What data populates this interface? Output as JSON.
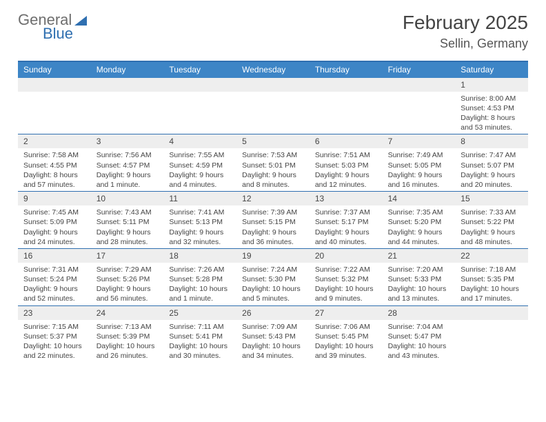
{
  "brand": {
    "word1": "General",
    "word2": "Blue"
  },
  "title": {
    "month": "February 2025",
    "location": "Sellin, Germany"
  },
  "colors": {
    "header_bar": "#3d85c6",
    "rule": "#2f6fb0",
    "daynum_bg": "#eeeeee",
    "text": "#3a3a3a"
  },
  "day_labels": [
    "Sunday",
    "Monday",
    "Tuesday",
    "Wednesday",
    "Thursday",
    "Friday",
    "Saturday"
  ],
  "weeks": [
    [
      {
        "n": "",
        "sr": "",
        "ss": "",
        "dl": ""
      },
      {
        "n": "",
        "sr": "",
        "ss": "",
        "dl": ""
      },
      {
        "n": "",
        "sr": "",
        "ss": "",
        "dl": ""
      },
      {
        "n": "",
        "sr": "",
        "ss": "",
        "dl": ""
      },
      {
        "n": "",
        "sr": "",
        "ss": "",
        "dl": ""
      },
      {
        "n": "",
        "sr": "",
        "ss": "",
        "dl": ""
      },
      {
        "n": "1",
        "sr": "Sunrise: 8:00 AM",
        "ss": "Sunset: 4:53 PM",
        "dl": "Daylight: 8 hours and 53 minutes."
      }
    ],
    [
      {
        "n": "2",
        "sr": "Sunrise: 7:58 AM",
        "ss": "Sunset: 4:55 PM",
        "dl": "Daylight: 8 hours and 57 minutes."
      },
      {
        "n": "3",
        "sr": "Sunrise: 7:56 AM",
        "ss": "Sunset: 4:57 PM",
        "dl": "Daylight: 9 hours and 1 minute."
      },
      {
        "n": "4",
        "sr": "Sunrise: 7:55 AM",
        "ss": "Sunset: 4:59 PM",
        "dl": "Daylight: 9 hours and 4 minutes."
      },
      {
        "n": "5",
        "sr": "Sunrise: 7:53 AM",
        "ss": "Sunset: 5:01 PM",
        "dl": "Daylight: 9 hours and 8 minutes."
      },
      {
        "n": "6",
        "sr": "Sunrise: 7:51 AM",
        "ss": "Sunset: 5:03 PM",
        "dl": "Daylight: 9 hours and 12 minutes."
      },
      {
        "n": "7",
        "sr": "Sunrise: 7:49 AM",
        "ss": "Sunset: 5:05 PM",
        "dl": "Daylight: 9 hours and 16 minutes."
      },
      {
        "n": "8",
        "sr": "Sunrise: 7:47 AM",
        "ss": "Sunset: 5:07 PM",
        "dl": "Daylight: 9 hours and 20 minutes."
      }
    ],
    [
      {
        "n": "9",
        "sr": "Sunrise: 7:45 AM",
        "ss": "Sunset: 5:09 PM",
        "dl": "Daylight: 9 hours and 24 minutes."
      },
      {
        "n": "10",
        "sr": "Sunrise: 7:43 AM",
        "ss": "Sunset: 5:11 PM",
        "dl": "Daylight: 9 hours and 28 minutes."
      },
      {
        "n": "11",
        "sr": "Sunrise: 7:41 AM",
        "ss": "Sunset: 5:13 PM",
        "dl": "Daylight: 9 hours and 32 minutes."
      },
      {
        "n": "12",
        "sr": "Sunrise: 7:39 AM",
        "ss": "Sunset: 5:15 PM",
        "dl": "Daylight: 9 hours and 36 minutes."
      },
      {
        "n": "13",
        "sr": "Sunrise: 7:37 AM",
        "ss": "Sunset: 5:17 PM",
        "dl": "Daylight: 9 hours and 40 minutes."
      },
      {
        "n": "14",
        "sr": "Sunrise: 7:35 AM",
        "ss": "Sunset: 5:20 PM",
        "dl": "Daylight: 9 hours and 44 minutes."
      },
      {
        "n": "15",
        "sr": "Sunrise: 7:33 AM",
        "ss": "Sunset: 5:22 PM",
        "dl": "Daylight: 9 hours and 48 minutes."
      }
    ],
    [
      {
        "n": "16",
        "sr": "Sunrise: 7:31 AM",
        "ss": "Sunset: 5:24 PM",
        "dl": "Daylight: 9 hours and 52 minutes."
      },
      {
        "n": "17",
        "sr": "Sunrise: 7:29 AM",
        "ss": "Sunset: 5:26 PM",
        "dl": "Daylight: 9 hours and 56 minutes."
      },
      {
        "n": "18",
        "sr": "Sunrise: 7:26 AM",
        "ss": "Sunset: 5:28 PM",
        "dl": "Daylight: 10 hours and 1 minute."
      },
      {
        "n": "19",
        "sr": "Sunrise: 7:24 AM",
        "ss": "Sunset: 5:30 PM",
        "dl": "Daylight: 10 hours and 5 minutes."
      },
      {
        "n": "20",
        "sr": "Sunrise: 7:22 AM",
        "ss": "Sunset: 5:32 PM",
        "dl": "Daylight: 10 hours and 9 minutes."
      },
      {
        "n": "21",
        "sr": "Sunrise: 7:20 AM",
        "ss": "Sunset: 5:33 PM",
        "dl": "Daylight: 10 hours and 13 minutes."
      },
      {
        "n": "22",
        "sr": "Sunrise: 7:18 AM",
        "ss": "Sunset: 5:35 PM",
        "dl": "Daylight: 10 hours and 17 minutes."
      }
    ],
    [
      {
        "n": "23",
        "sr": "Sunrise: 7:15 AM",
        "ss": "Sunset: 5:37 PM",
        "dl": "Daylight: 10 hours and 22 minutes."
      },
      {
        "n": "24",
        "sr": "Sunrise: 7:13 AM",
        "ss": "Sunset: 5:39 PM",
        "dl": "Daylight: 10 hours and 26 minutes."
      },
      {
        "n": "25",
        "sr": "Sunrise: 7:11 AM",
        "ss": "Sunset: 5:41 PM",
        "dl": "Daylight: 10 hours and 30 minutes."
      },
      {
        "n": "26",
        "sr": "Sunrise: 7:09 AM",
        "ss": "Sunset: 5:43 PM",
        "dl": "Daylight: 10 hours and 34 minutes."
      },
      {
        "n": "27",
        "sr": "Sunrise: 7:06 AM",
        "ss": "Sunset: 5:45 PM",
        "dl": "Daylight: 10 hours and 39 minutes."
      },
      {
        "n": "28",
        "sr": "Sunrise: 7:04 AM",
        "ss": "Sunset: 5:47 PM",
        "dl": "Daylight: 10 hours and 43 minutes."
      },
      {
        "n": "",
        "sr": "",
        "ss": "",
        "dl": ""
      }
    ]
  ]
}
